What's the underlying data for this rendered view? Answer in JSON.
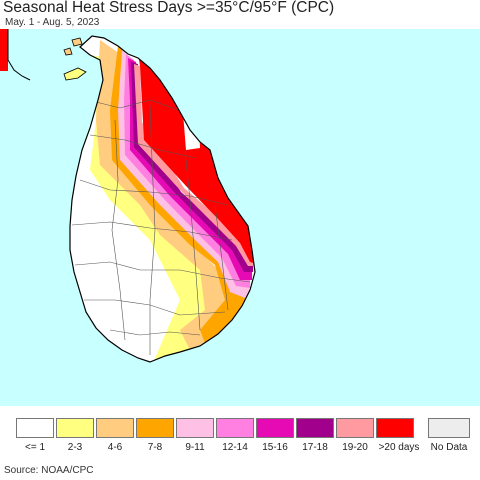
{
  "title": "Seasonal Heat Stress Days >=35°C/95°F (CPC)",
  "subtitle": "May. 1 - Aug. 5, 2023",
  "source": "Source: NOAA/CPC",
  "colors": {
    "ocean": "#c8ffff",
    "land": "#ffffff",
    "no_data": "#ededed"
  },
  "legend": [
    {
      "label": "<= 1",
      "color": "#ffffff"
    },
    {
      "label": "2-3",
      "color": "#ffff80"
    },
    {
      "label": "4-6",
      "color": "#ffcc80"
    },
    {
      "label": "7-8",
      "color": "#ffa500"
    },
    {
      "label": "9-11",
      "color": "#ffc0e6"
    },
    {
      "label": "12-14",
      "color": "#ff80e0"
    },
    {
      "label": "15-16",
      "color": "#e60ab4"
    },
    {
      "label": "17-18",
      "color": "#a0008c"
    },
    {
      "label": "19-20",
      "color": "#ff9aa0"
    },
    {
      "label": ">20 days",
      "color": "#ff0000"
    },
    {
      "label": "No Data",
      "color": "#ededed"
    }
  ]
}
